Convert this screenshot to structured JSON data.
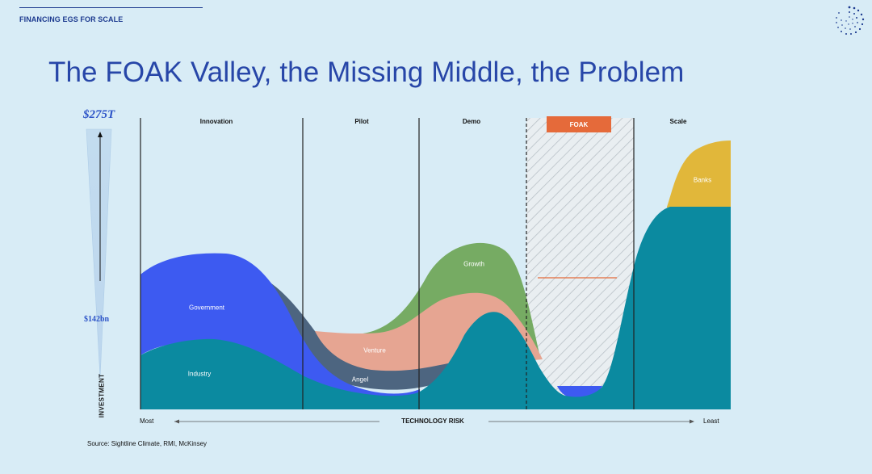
{
  "header": {
    "section_label": "FINANCING EGS FOR SCALE",
    "title": "The FOAK Valley, the Missing Middle, the Problem"
  },
  "scale": {
    "top_value": "$275T",
    "mid_value": "$142bn",
    "axis_label": "INVESTMENT"
  },
  "stages": {
    "innovation": "Innovation",
    "pilot": "Pilot",
    "demo": "Demo",
    "foak": "FOAK",
    "scale": "Scale"
  },
  "areas": {
    "government": "Government",
    "industry": "Industry",
    "angel": "Angel",
    "venture": "Venture",
    "growth": "Growth",
    "banks": "Banks"
  },
  "x_axis": {
    "left": "Most",
    "title": "TECHNOLOGY RISK",
    "right": "Least"
  },
  "footer": {
    "source": "Source: Sightline Climate, RMI, McKinsey"
  },
  "colors": {
    "background": "#d8ecf6",
    "government": "#3d5af1",
    "industry": "#0b8aa0",
    "angel": "#4d6580",
    "venture": "#e6a592",
    "growth": "#76ab63",
    "banks": "#e1b73a",
    "foak_tag": "#e56a3a",
    "title": "#2746a8"
  }
}
